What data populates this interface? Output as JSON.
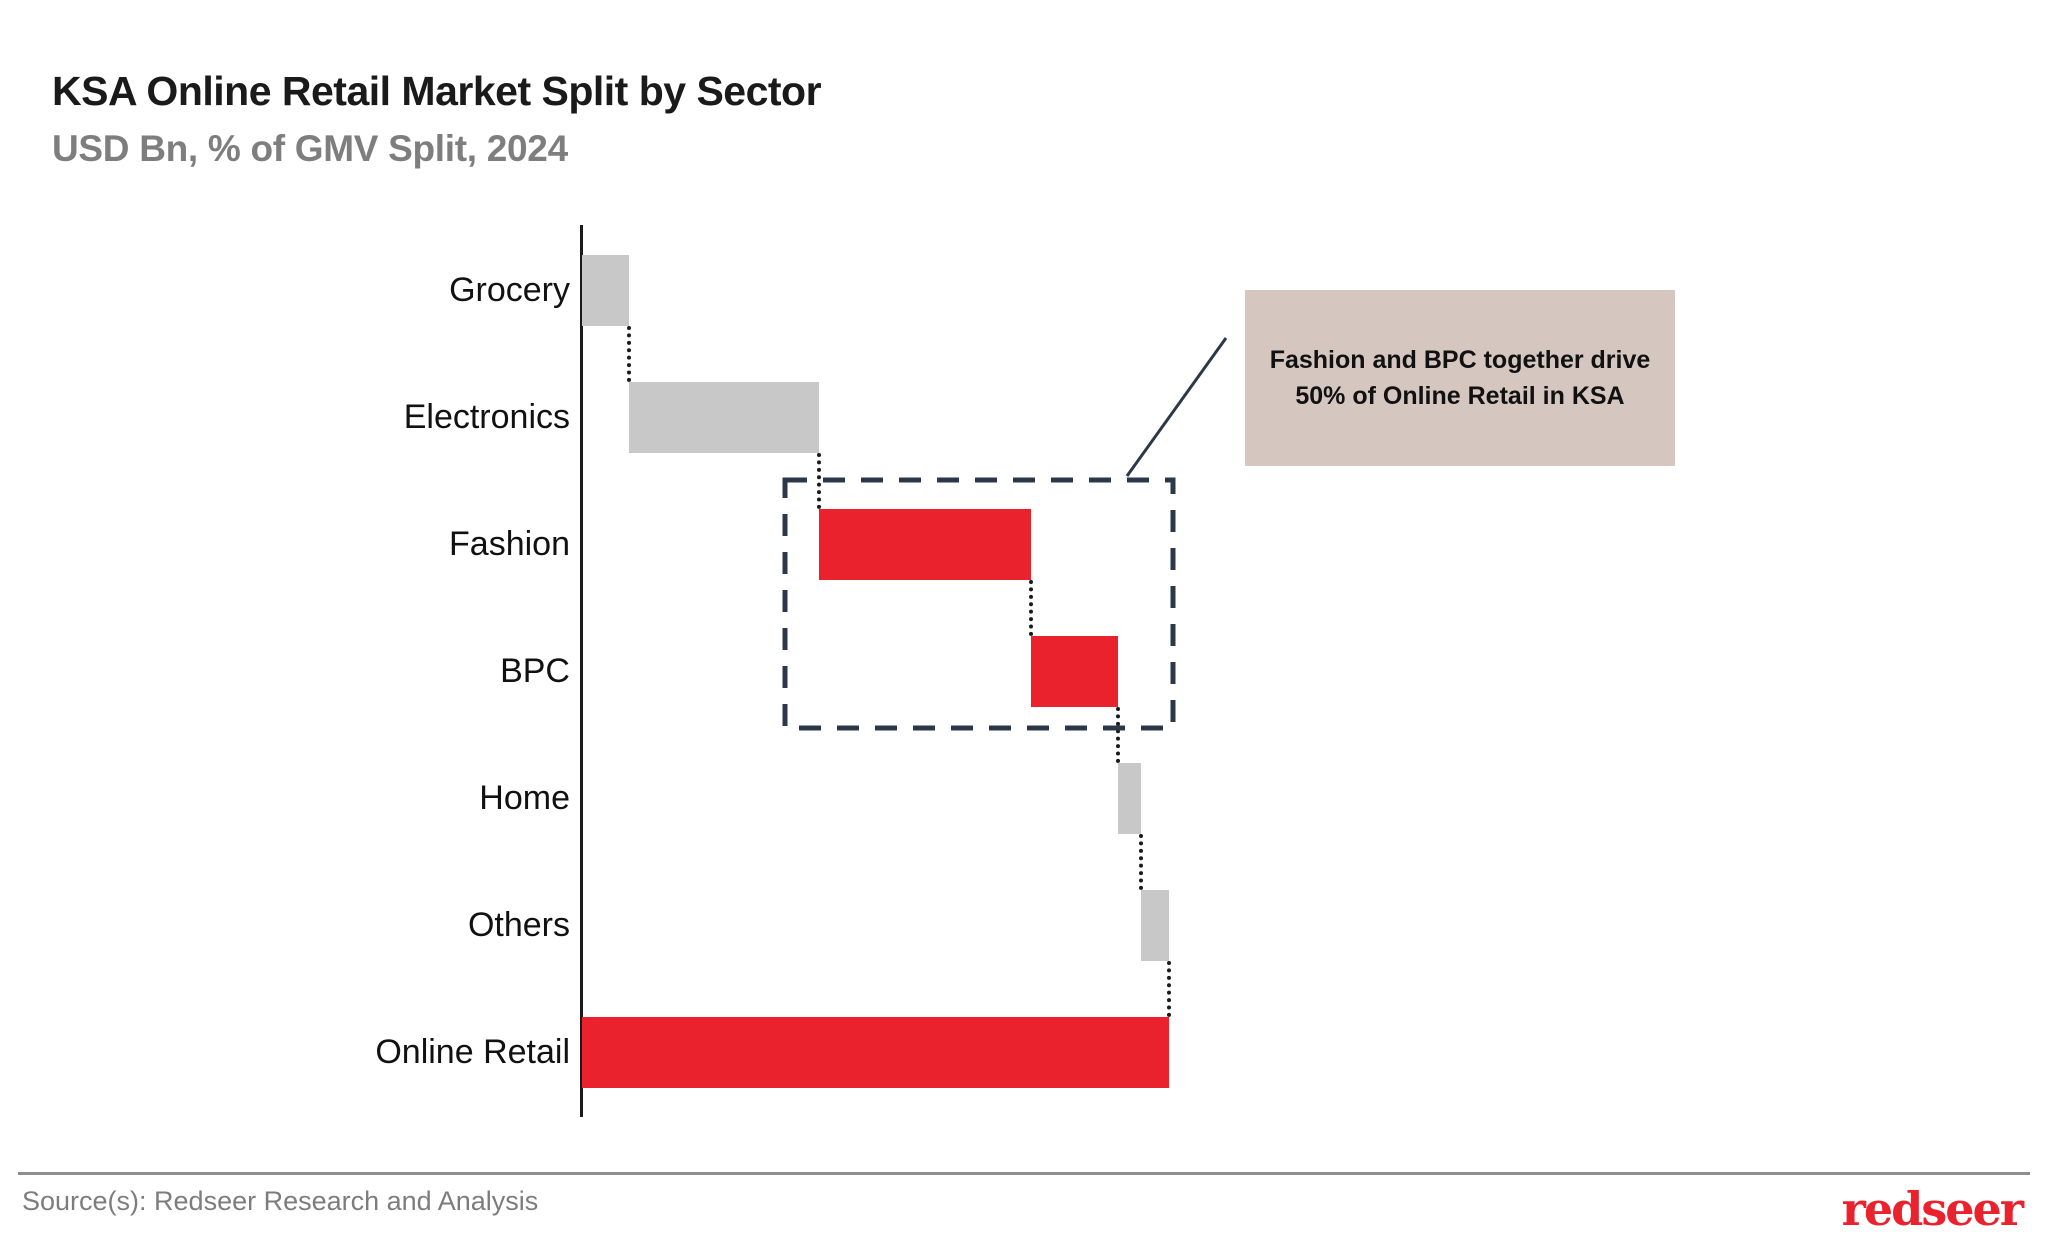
{
  "header": {
    "title": "KSA Online Retail Market Split by Sector",
    "subtitle": "USD Bn, % of GMV Split, 2024"
  },
  "annotation": {
    "text": "Fashion and BPC together drive 50% of Online Retail in KSA"
  },
  "footer": {
    "source": "Source(s): Redseer Research and Analysis",
    "logo": "redseer"
  },
  "colors": {
    "red": "#e9222e",
    "gray": "#c8c8c8",
    "dashed_box": "#2c3849",
    "connector": "#1a1a1a",
    "callout_bg": "#d5c6bf",
    "title_text": "#1a1a1a",
    "subtitle_text": "#7e7e7e",
    "source_text": "#7d7d7d"
  },
  "chart_data": {
    "type": "bar",
    "variant": "horizontal-waterfall",
    "title": "KSA Online Retail Market Split by Sector",
    "units": "USD Bn, % of GMV Split, 2024",
    "categories": [
      "Grocery",
      "Electronics",
      "Fashion",
      "BPC",
      "Home",
      "Others",
      "Online Retail"
    ],
    "series": [
      {
        "name": "% of GMV (estimated from bar lengths)",
        "values": [
          8,
          32.4,
          36.1,
          14.8,
          3.9,
          4.8,
          100
        ]
      }
    ],
    "segments": [
      {
        "label": "Grocery",
        "start_pct": 0,
        "value_pct": 8,
        "color_token": "gray"
      },
      {
        "label": "Electronics",
        "start_pct": 8,
        "value_pct": 32.4,
        "color_token": "gray"
      },
      {
        "label": "Fashion",
        "start_pct": 40.4,
        "value_pct": 36.1,
        "color_token": "red"
      },
      {
        "label": "BPC",
        "start_pct": 76.5,
        "value_pct": 14.8,
        "color_token": "red"
      },
      {
        "label": "Home",
        "start_pct": 91.3,
        "value_pct": 3.9,
        "color_token": "gray"
      },
      {
        "label": "Others",
        "start_pct": 95.2,
        "value_pct": 4.8,
        "color_token": "gray"
      },
      {
        "label": "Online Retail",
        "start_pct": 0,
        "value_pct": 100,
        "color_token": "red"
      }
    ],
    "xlim": [
      0,
      100
    ],
    "grid": false,
    "legend": false,
    "value_labels_shown": false,
    "highlighted_categories": [
      "Fashion",
      "BPC"
    ],
    "highlight_share_pct": 50,
    "annotation": "Fashion and BPC together drive 50% of Online Retail in KSA"
  }
}
